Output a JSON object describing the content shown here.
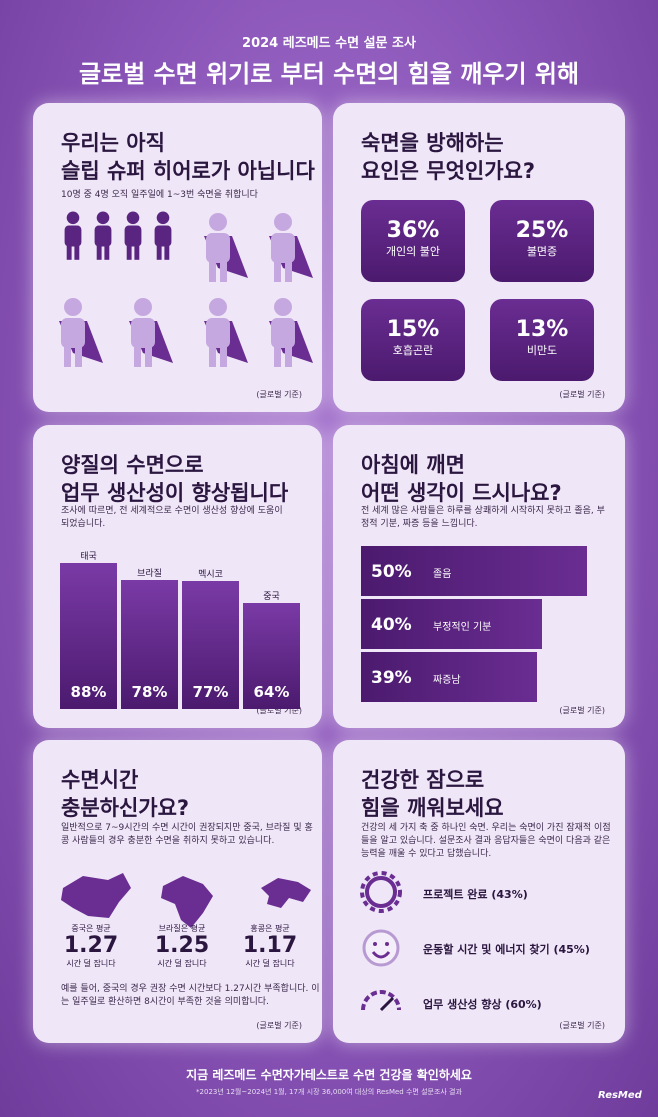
{
  "header": {
    "subtitle": "2024 레즈메드 수면 설문 조사",
    "title": "글로벌 수면 위기로 부터 수면의 힘을 깨우기 위해"
  },
  "cards": [
    {
      "title": [
        "우리는 아직",
        "슬립 슈퍼 히어로가 아닙니다"
      ],
      "note": "10명 중 4명 오직 일주일에 1~3번 숙면을 취합니다",
      "source": "(글로벌 기준)"
    },
    {
      "title": [
        "숙면을 방해하는",
        "요인은 무엇인가요?"
      ],
      "factors": [
        {
          "percent": "36%",
          "name": "개인의 불안"
        },
        {
          "percent": "25%",
          "name": "불면증"
        },
        {
          "percent": "15%",
          "name": "호흡곤란"
        },
        {
          "percent": "13%",
          "name": "비만도"
        }
      ],
      "source": "(글로벌 기준)"
    },
    {
      "title": [
        "양질의 수면으로",
        "업무 생산성이 향상됩니다"
      ],
      "note": "조사에 따르면, 전 세계적으로 수면이 생산성 향상에 도움이 되었습니다.",
      "categories": [
        "태국",
        "브라질",
        "멕시코",
        "중국"
      ],
      "values": [
        88,
        78,
        77,
        64
      ],
      "value_labels": [
        "88%",
        "78%",
        "77%",
        "64%"
      ],
      "source": "(글로벌 기준)"
    },
    {
      "title": [
        "아침에 깨면",
        "어떤 생각이 드시나요?"
      ],
      "note": "전 세계 많은 사람들은 하루를 상쾌하게 시작하지 못하고 졸음, 부정적 기분, 짜증 등을 느낍니다.",
      "categories": [
        "졸음",
        "부정적인 기분",
        "짜증남"
      ],
      "values": [
        50,
        40,
        39
      ],
      "value_labels": [
        "50%",
        "40%",
        "39%"
      ],
      "source": "(글로벌 기준)"
    },
    {
      "title": [
        "수면시간",
        "충분하신가요?"
      ],
      "note": "일반적으로 7~9시간의 수면 시간이 권장되지만 중국, 브라질 및 홍콩 사람들의 경우 충분한 수면을 취하지 못하고 있습니다.",
      "countries": [
        {
          "label": "중국은 평균",
          "value": "1.27",
          "unit": "시간 덜 잡니다"
        },
        {
          "label": "브라질은 평균",
          "value": "1.25",
          "unit": "시간 덜 잡니다"
        },
        {
          "label": "홍콩은 평균",
          "value": "1.17",
          "unit": "시간 덜 잡니다"
        }
      ],
      "note2": "예를 들어, 중국의 경우 권장 수면 시간보다 1.27시간 부족합니다. 이는 일주일로 환산하면 8시간이 부족한 것을 의미합니다.",
      "source": "(글로벌 기준)"
    },
    {
      "title": [
        "건강한 잠으로",
        "힘을 깨워보세요"
      ],
      "note": "건강의 세 가지 축 중 하나인 숙면. 우리는 숙면이 가진 잠재적 이점들을 알고 있습니다. 설문조사 결과 응답자들은 숙면이 다음과 같은 능력을 깨울 수 있다고 답했습니다.",
      "items": [
        "프로젝트 완료 (43%)",
        "운동할 시간 및 에너지 찾기 (45%)",
        "업무 생산성 향상 (60%)"
      ],
      "source": "(글로벌 기준)"
    }
  ],
  "footer": {
    "cta": "지금 레즈메드 수면자가테스트로 수면 건강을 확인하세요",
    "footnote": "*2023년 12월~2024년 1월, 17개 시장 36,000여 대상의 ResMed 수면 설문조사 결과",
    "logo": "ResMed"
  }
}
